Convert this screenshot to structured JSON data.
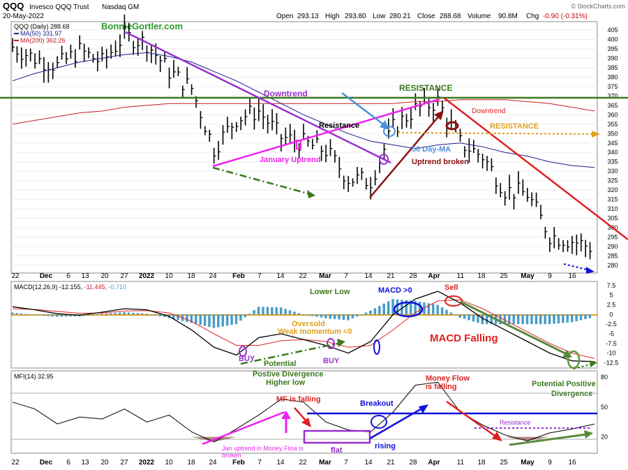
{
  "header": {
    "symbol": "QQQ",
    "name": "Invesco QQQ Trust",
    "exchange": "Nasdaq GM",
    "date": "20-May-2022",
    "copyright": "© StockCharts.com",
    "open_label": "Open",
    "open": "293.13",
    "high_label": "High",
    "high": "293.80",
    "low_label": "Low",
    "low": "280.21",
    "close_label": "Close",
    "close": "288.68",
    "volume_label": "Volume",
    "volume": "90.8M",
    "chg_label": "Chg",
    "chg": "-0.90 (-0.31%)"
  },
  "legend": {
    "price": "QQQ (Daily) 288.68",
    "ma50": "MA(50) 331.97",
    "ma200": "MA(200) 362.26",
    "brand": "BonnieGortler.com"
  },
  "colors": {
    "ma50": "#1c1c8c",
    "ma200": "#c0202a",
    "purple": "#9a2fd0",
    "magenta": "#ee22ee",
    "green": "#3a7a1e",
    "orange": "#e0a020",
    "red": "#e02020",
    "blue": "#1010e0",
    "darkred": "#8b1010",
    "lightblue": "#4a90d9",
    "hist": "#4a9cc8"
  },
  "x_axis": {
    "labels": [
      "22",
      "Dec",
      "6",
      "13",
      "20",
      "27",
      "2022",
      "10",
      "18",
      "24",
      "Feb",
      "7",
      "14",
      "22",
      "Mar",
      "7",
      "14",
      "21",
      "28",
      "Apr",
      "11",
      "18",
      "25",
      "May",
      "9",
      "16"
    ]
  },
  "chart_data": [
    {
      "type": "line",
      "title": "QQQ (Daily) 288.68",
      "x": [
        "Nov 22",
        "Nov 29",
        "Dec 6",
        "Dec 13",
        "Dec 20",
        "Dec 27",
        "Jan 3",
        "Jan 10",
        "Jan 18",
        "Jan 24",
        "Jan 31",
        "Feb 7",
        "Feb 14",
        "Feb 22",
        "Feb 28",
        "Mar 7",
        "Mar 14",
        "Mar 21",
        "Mar 28",
        "Apr 4",
        "Apr 11",
        "Apr 18",
        "Apr 25",
        "May 2",
        "May 9",
        "May 16",
        "May 20"
      ],
      "series": [
        {
          "name": "QQQ (Daily) 288.68",
          "values": [
            396,
            390,
            386,
            394,
            388,
            402,
            398,
            383,
            374,
            342,
            358,
            362,
            348,
            345,
            341,
            326,
            325,
            353,
            363,
            367,
            345,
            338,
            320,
            318,
            296,
            293,
            289
          ]
        },
        {
          "name": "MA(50) 331.97",
          "values": [
            378,
            382,
            385,
            388,
            390,
            392,
            393,
            391,
            388,
            383,
            378,
            372,
            366,
            360,
            355,
            350,
            346,
            344,
            342,
            344,
            345,
            343,
            340,
            338,
            335,
            333,
            332
          ]
        },
        {
          "name": "MA(200) 362.26",
          "values": [
            355,
            357,
            359,
            361,
            362,
            364,
            365,
            366,
            366,
            366,
            366,
            366,
            366,
            366,
            366,
            366,
            366,
            366,
            367,
            367,
            368,
            368,
            368,
            367,
            366,
            364,
            362
          ]
        }
      ],
      "ylim": [
        277,
        408
      ],
      "yticks": [
        280,
        285,
        290,
        295,
        300,
        305,
        310,
        315,
        320,
        325,
        330,
        335,
        340,
        345,
        350,
        355,
        360,
        365,
        370,
        375,
        380,
        385,
        390,
        395,
        400,
        405
      ],
      "annotations": [
        "Downtrend",
        "Resistance",
        "January Uptrend",
        "RESISTANCE",
        "50 Day-MA",
        "Uptrend broken",
        "Downtrend",
        "RESISTANCE"
      ]
    },
    {
      "type": "line",
      "title": "MACD(12,26,9) -12.155, -11.445, -0.710",
      "title_macd": "MACD(12,26,9)",
      "title_vals_black": "-12.155,",
      "title_vals_red": "-11.445,",
      "title_vals_blue": "-0.710",
      "series": [
        {
          "name": "MACD",
          "values": [
            2,
            1.2,
            0.2,
            -0.2,
            0.6,
            1.5,
            1.2,
            -0.5,
            -4,
            -8.5,
            -10.5,
            -6,
            -5,
            -6.5,
            -8,
            -10,
            -7,
            0,
            4,
            6,
            3,
            -1,
            -4,
            -7,
            -10,
            -12,
            -12.2
          ]
        },
        {
          "name": "Signal",
          "values": [
            1.5,
            1.3,
            0.8,
            0.3,
            0.4,
            0.9,
            1,
            0.4,
            -1.8,
            -5,
            -8,
            -8,
            -6.8,
            -6.5,
            -7,
            -8.5,
            -8,
            -4,
            0.5,
            3.5,
            3.8,
            1.5,
            -1.5,
            -4.5,
            -7.5,
            -10,
            -11.4
          ]
        },
        {
          "name": "Histogram",
          "values": [
            0.5,
            -0.1,
            -0.6,
            -0.5,
            0.2,
            0.6,
            0.2,
            -0.9,
            -2.2,
            -3.5,
            -2.5,
            2,
            1.8,
            0,
            -1,
            -1.5,
            1,
            4,
            3.5,
            2.5,
            -0.8,
            -2.5,
            -2.5,
            -2.5,
            -2.5,
            -2,
            -0.7
          ]
        }
      ],
      "ylim": [
        -13.5,
        8
      ],
      "yticks": [
        7.5,
        5,
        2.5,
        0,
        -2.5,
        -5,
        -7.5,
        -10,
        -12.5
      ],
      "annotations": [
        "Lower Low",
        "MACD >0",
        "Sell",
        "Oversold",
        "Weak momentum <0",
        "MACD Falling",
        "BUY",
        "Potential",
        "Postive Divergence",
        "Higher low",
        "BUY",
        "Potential Positive",
        "Divergence"
      ]
    },
    {
      "type": "line",
      "title": "MFI(14) 32.95",
      "series": [
        {
          "name": "MFI(14) 32.95",
          "values": [
            55,
            48,
            33,
            40,
            38,
            48,
            35,
            42,
            25,
            15,
            28,
            42,
            58,
            55,
            35,
            27,
            25,
            45,
            72,
            75,
            45,
            32,
            22,
            16,
            24,
            28,
            33
          ]
        }
      ],
      "ylim": [
        5,
        85
      ],
      "yticks": [
        80,
        50,
        20
      ],
      "annotations": [
        "MF is falling",
        "Breakout",
        "Money Flow",
        "is falling",
        "Resistance",
        "rising",
        "flat",
        "Jan uptrend in Money Flow is",
        "broken"
      ]
    }
  ]
}
